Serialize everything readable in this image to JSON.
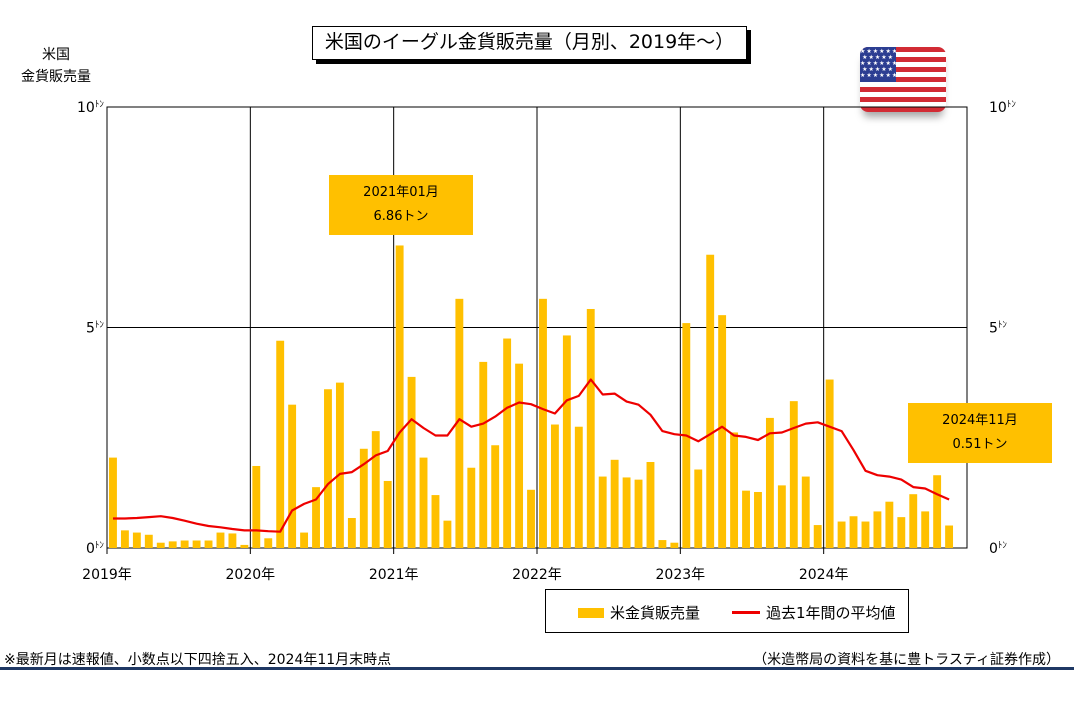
{
  "title": "米国のイーグル金貨販売量（月別、2019年～）",
  "y_axis_header": [
    "米国",
    "金貨販売量"
  ],
  "flag_icon": "us-flag-icon",
  "colors": {
    "bar": "#ffc000",
    "line": "#ee0000",
    "annotation_bg": "#ffc000",
    "rule": "#1f3864"
  },
  "annotations": [
    {
      "line1": "2021年01月",
      "line2": "6.86トン"
    },
    {
      "line1": "2024年11月",
      "line2": "0.51トン"
    }
  ],
  "legend": {
    "bar_label": "米金貨販売量",
    "line_label": "過去1年間の平均値"
  },
  "footnote_left": "※最新月は速報値、小数点以下四捨五入、2024年11月末時点",
  "footnote_right": "（米造幣局の資料を基に豊トラスティ証券作成）",
  "chart_data": {
    "type": "bar",
    "title": "米国のイーグル金貨販売量（月別、2019年～）",
    "unit": "トン",
    "ylim": [
      0,
      10
    ],
    "y_ticks": [
      {
        "value": 0,
        "label": "0",
        "unit": "ﾄﾝ"
      },
      {
        "value": 5,
        "label": "5",
        "unit": "ﾄﾝ"
      },
      {
        "value": 10,
        "label": "10",
        "unit": "ﾄﾝ"
      }
    ],
    "x_tick_labels": [
      "2019年",
      "2020年",
      "2021年",
      "2022年",
      "2023年",
      "2024年"
    ],
    "grid": true,
    "legend_position": "bottom-right",
    "x": [
      "2019-01",
      "2019-02",
      "2019-03",
      "2019-04",
      "2019-05",
      "2019-06",
      "2019-07",
      "2019-08",
      "2019-09",
      "2019-10",
      "2019-11",
      "2019-12",
      "2020-01",
      "2020-02",
      "2020-03",
      "2020-04",
      "2020-05",
      "2020-06",
      "2020-07",
      "2020-08",
      "2020-09",
      "2020-10",
      "2020-11",
      "2020-12",
      "2021-01",
      "2021-02",
      "2021-03",
      "2021-04",
      "2021-05",
      "2021-06",
      "2021-07",
      "2021-08",
      "2021-09",
      "2021-10",
      "2021-11",
      "2021-12",
      "2022-01",
      "2022-02",
      "2022-03",
      "2022-04",
      "2022-05",
      "2022-06",
      "2022-07",
      "2022-08",
      "2022-09",
      "2022-10",
      "2022-11",
      "2022-12",
      "2023-01",
      "2023-02",
      "2023-03",
      "2023-04",
      "2023-05",
      "2023-06",
      "2023-07",
      "2023-08",
      "2023-09",
      "2023-10",
      "2023-11",
      "2023-12",
      "2024-01",
      "2024-02",
      "2024-03",
      "2024-04",
      "2024-05",
      "2024-06",
      "2024-07",
      "2024-08",
      "2024-09",
      "2024-10",
      "2024-11"
    ],
    "series": [
      {
        "name": "米金貨販売量",
        "type": "bar",
        "values": [
          2.05,
          0.4,
          0.35,
          0.3,
          0.12,
          0.15,
          0.17,
          0.17,
          0.17,
          0.35,
          0.33,
          0.07,
          1.86,
          0.22,
          4.7,
          3.25,
          0.35,
          1.38,
          3.6,
          3.75,
          0.68,
          2.25,
          2.65,
          1.52,
          6.86,
          3.88,
          2.05,
          1.2,
          0.62,
          5.65,
          1.82,
          4.22,
          2.33,
          4.75,
          4.18,
          1.32,
          5.65,
          2.8,
          4.82,
          2.75,
          5.42,
          1.62,
          2.0,
          1.6,
          1.55,
          1.95,
          0.18,
          0.12,
          5.1,
          1.78,
          6.65,
          5.28,
          2.62,
          1.3,
          1.27,
          2.95,
          1.42,
          3.33,
          1.62,
          0.52,
          3.82,
          0.6,
          0.72,
          0.6,
          0.83,
          1.05,
          0.7,
          1.22,
          0.83,
          1.65,
          0.51
        ]
      },
      {
        "name": "過去1年間の平均値",
        "type": "line",
        "values": [
          0.67,
          0.67,
          0.68,
          0.7,
          0.72,
          0.68,
          0.62,
          0.55,
          0.5,
          0.47,
          0.43,
          0.4,
          0.4,
          0.38,
          0.37,
          0.85,
          1.0,
          1.1,
          1.45,
          1.68,
          1.72,
          1.9,
          2.1,
          2.2,
          2.62,
          2.92,
          2.72,
          2.55,
          2.55,
          2.92,
          2.75,
          2.82,
          2.98,
          3.18,
          3.3,
          3.26,
          3.15,
          3.05,
          3.35,
          3.45,
          3.82,
          3.48,
          3.5,
          3.32,
          3.25,
          3.02,
          2.65,
          2.58,
          2.55,
          2.42,
          2.58,
          2.75,
          2.55,
          2.52,
          2.45,
          2.6,
          2.62,
          2.72,
          2.82,
          2.85,
          2.75,
          2.65,
          2.22,
          1.75,
          1.65,
          1.62,
          1.55,
          1.38,
          1.35,
          1.22,
          1.1
        ]
      }
    ]
  }
}
